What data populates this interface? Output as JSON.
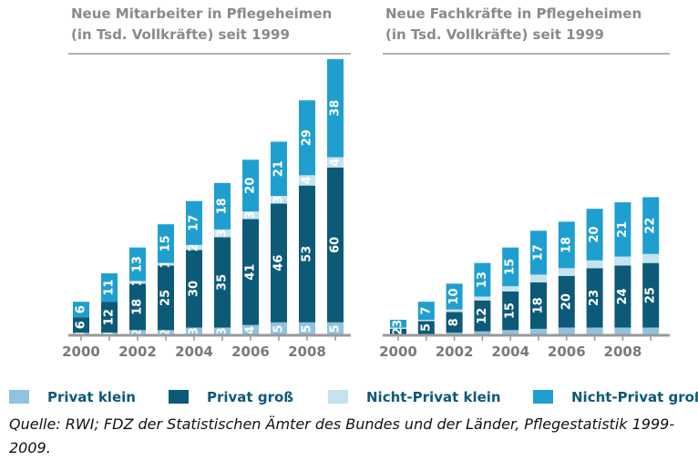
{
  "legend": [
    {
      "name": "Privat klein",
      "color": "#8fc3e0"
    },
    {
      "name": "Privat groß",
      "color": "#0d5a78"
    },
    {
      "name": "Nicht-Privat klein",
      "color": "#c5e3ee"
    },
    {
      "name": "Nicht-Privat groß",
      "color": "#1f9fd0"
    }
  ],
  "source": "Quelle: RWI; FDZ der Statistischen Ämter des Bundes und der Länder, Pflegestatistik 1999-2009.",
  "chart_data": [
    {
      "type": "stacked_bar",
      "title": [
        "Neue Mitarbeiter in Pflegeheimen",
        "(in Tsd. Vollkräfte) seit 1999"
      ],
      "categories": [
        "2000",
        null,
        "2002",
        null,
        "2004",
        null,
        "2006",
        null,
        "2008",
        null
      ],
      "ylim": [
        0,
        108
      ],
      "series": [
        {
          "values": [
            1,
            1,
            2,
            2,
            3,
            3,
            4,
            5,
            5,
            5
          ],
          "labeled": true
        },
        {
          "values": [
            6,
            12,
            18,
            25,
            30,
            35,
            41,
            46,
            53,
            60
          ],
          "labeled": true
        },
        {
          "values": [
            null,
            null,
            1,
            1,
            2,
            3,
            3,
            3,
            4,
            4
          ],
          "labeled": true
        },
        {
          "values": [
            6,
            11,
            13,
            15,
            17,
            18,
            20,
            21,
            29,
            38
          ],
          "labeled": true
        }
      ]
    },
    {
      "type": "stacked_bar",
      "title": [
        "Neue Fachkräfte in Pflegeheimen",
        "(in Tsd. Vollkräfte) seit 1999"
      ],
      "categories": [
        "2000",
        null,
        "2002",
        null,
        "2004",
        null,
        "2006",
        null,
        "2008",
        null
      ],
      "ylim": [
        0,
        108
      ],
      "series": [
        {
          "values": [
            0.5,
            0.5,
            1,
            1.5,
            2,
            2.5,
            3,
            3,
            3,
            3
          ],
          "labeled": false
        },
        {
          "values": [
            2,
            5,
            8,
            12,
            15,
            18,
            20,
            23,
            24,
            25
          ],
          "labeled": true
        },
        {
          "values": [
            0.5,
            0.5,
            1,
            1.5,
            2,
            3,
            3,
            3,
            3.5,
            3.5
          ],
          "labeled": false
        },
        {
          "values": [
            3,
            7,
            10,
            13,
            15,
            17,
            18,
            20,
            21,
            22
          ],
          "labeled": true
        }
      ]
    }
  ]
}
